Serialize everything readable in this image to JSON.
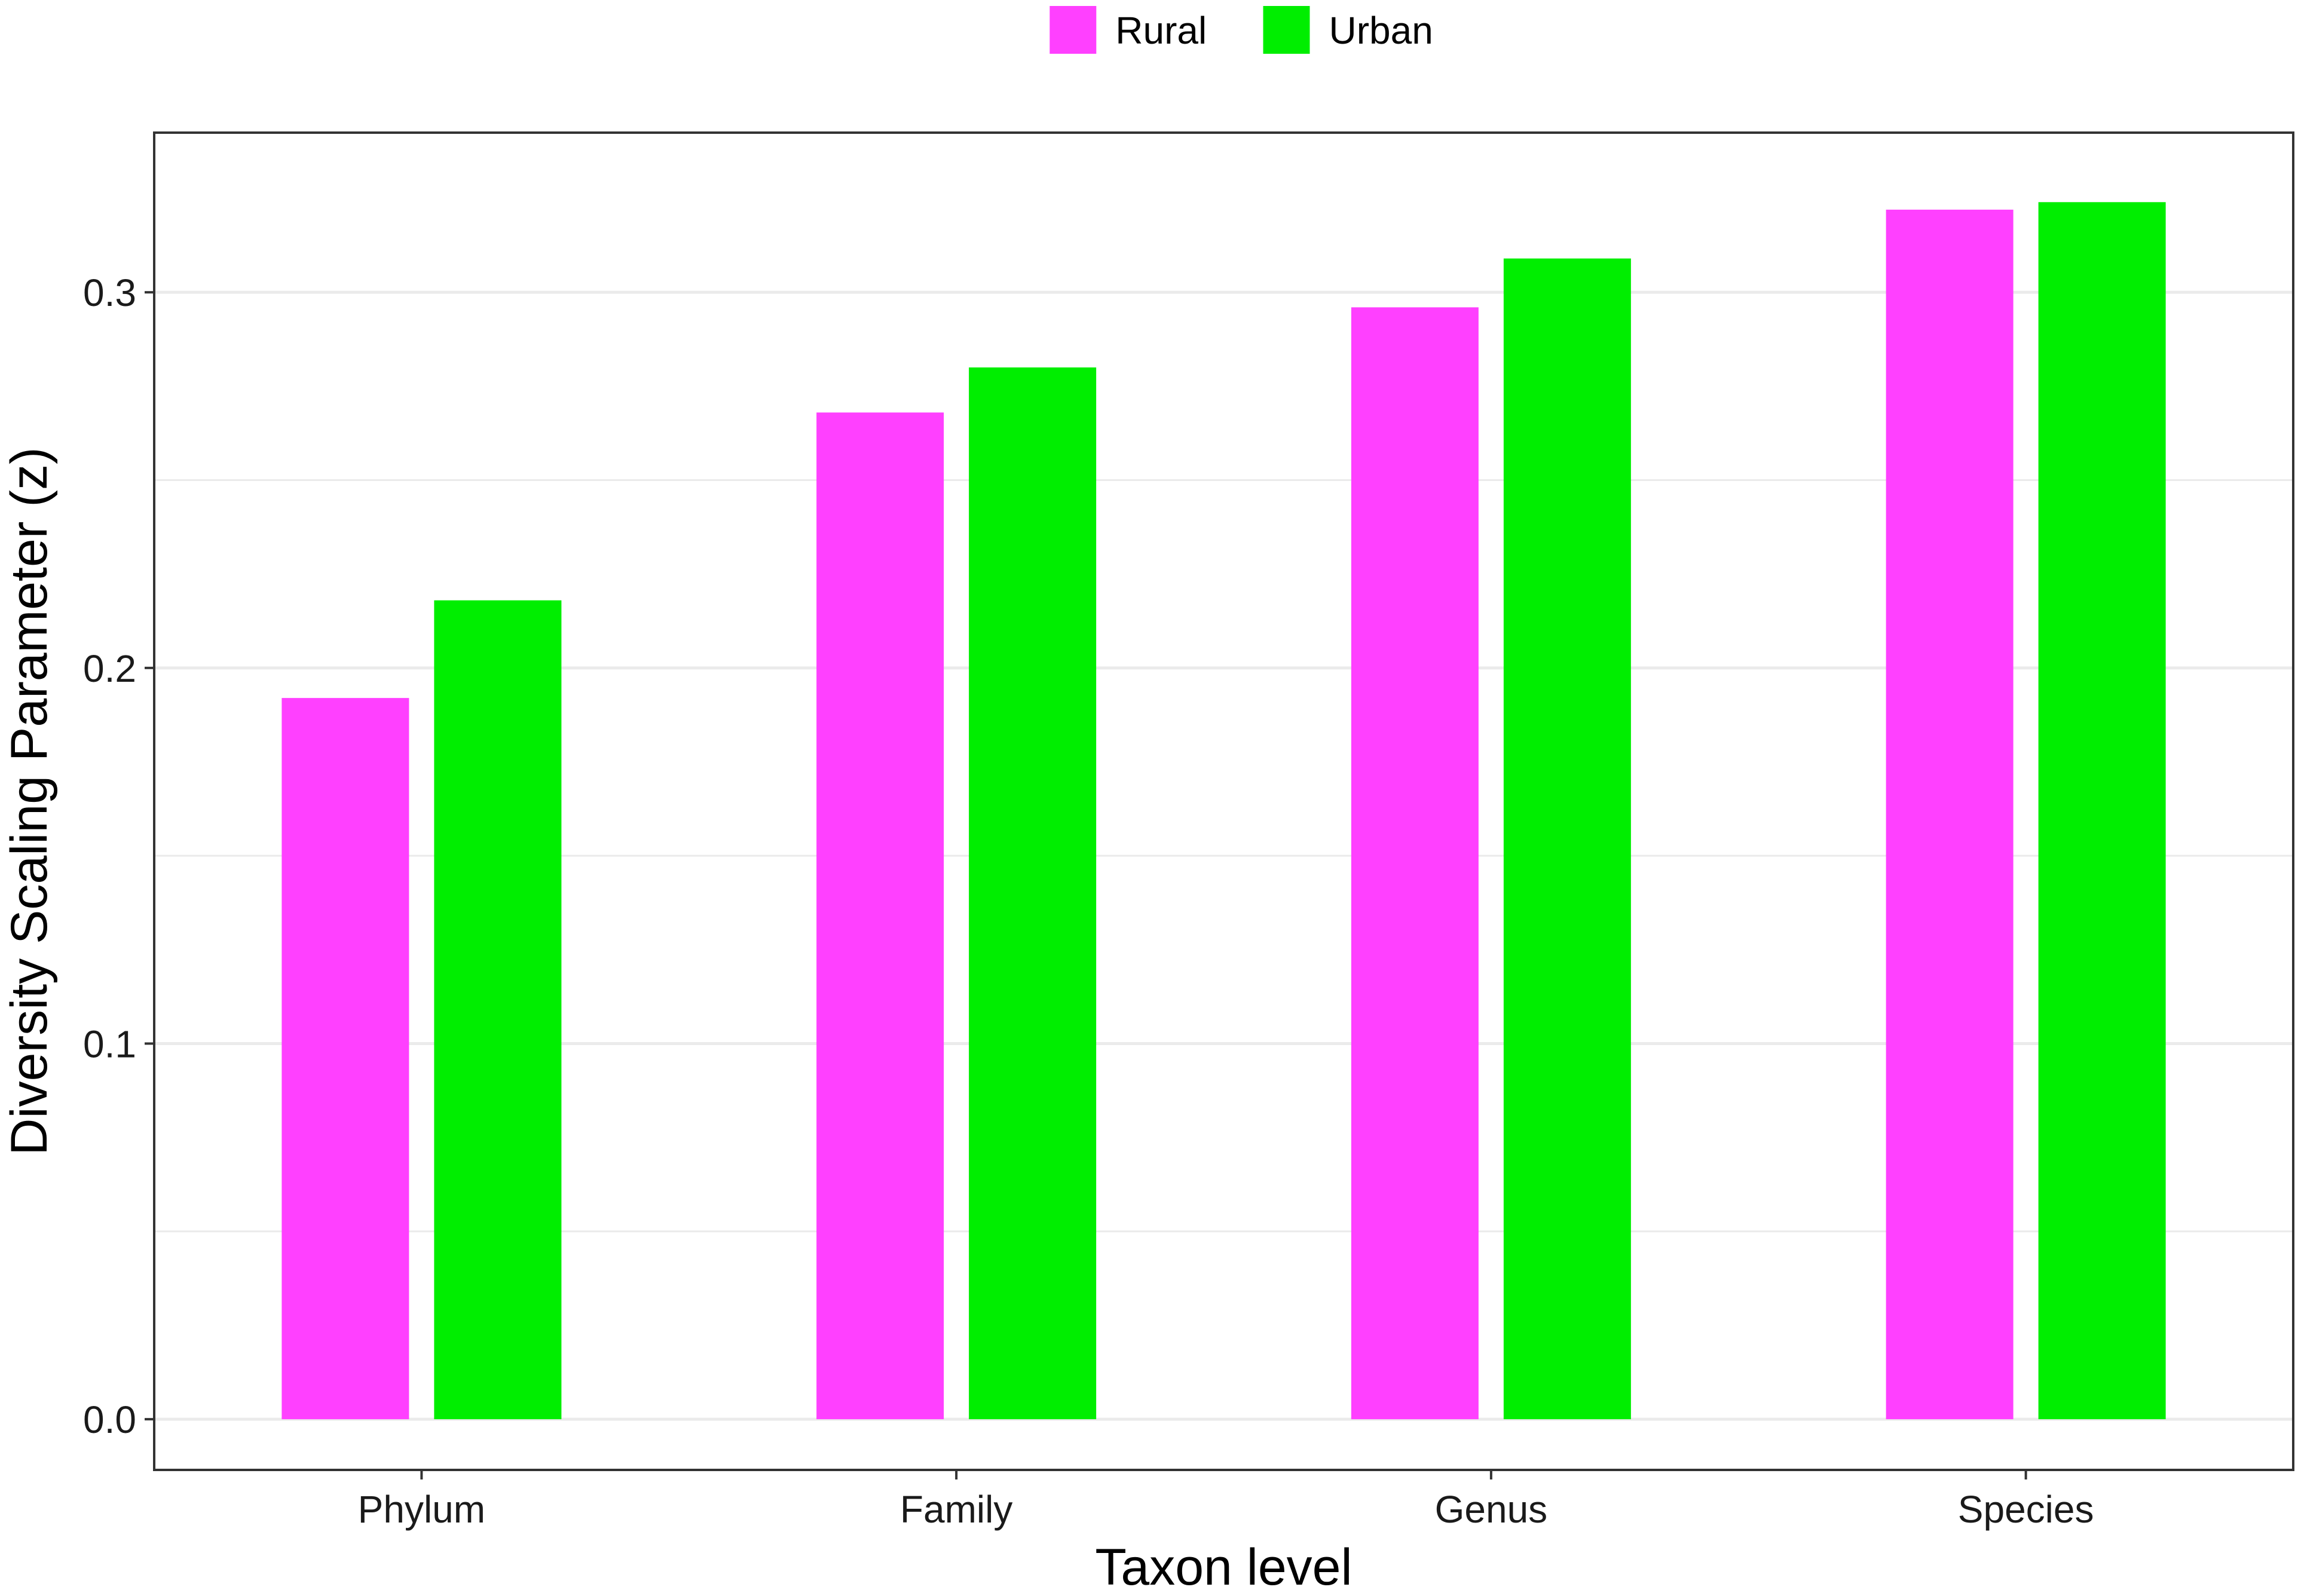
{
  "chart_data": {
    "type": "bar",
    "title": "",
    "xlabel": "Taxon level",
    "ylabel": "Diversity Scaling Parameter (z)",
    "categories": [
      "Phylum",
      "Family",
      "Genus",
      "Species"
    ],
    "series": [
      {
        "name": "Rural",
        "color": "#ff40ff",
        "values": [
          0.192,
          0.268,
          0.296,
          0.322
        ]
      },
      {
        "name": "Urban",
        "color": "#00ee00",
        "values": [
          0.218,
          0.28,
          0.309,
          0.324
        ]
      }
    ],
    "ylim": [
      -0.0135,
      0.3425
    ],
    "yticks": [
      0.0,
      0.1,
      0.2,
      0.3
    ],
    "ytick_labels": [
      "0.0",
      "0.1",
      "0.2",
      "0.3"
    ],
    "minor_gridlines": [
      0.05,
      0.15,
      0.25
    ],
    "grid": true,
    "legend_position": "top-center"
  }
}
